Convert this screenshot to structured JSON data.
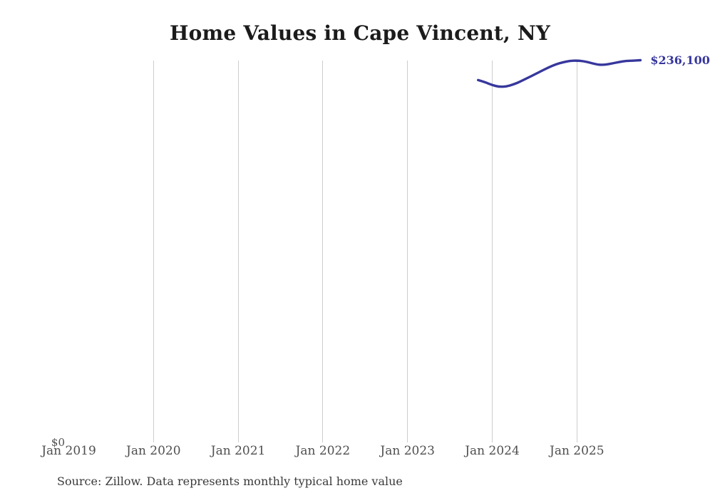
{
  "page": {
    "background_color": "#ffffff",
    "title_color": "#1b1b1b",
    "axis_label_color": "#4f4f4f",
    "source_color": "#3a3a3a"
  },
  "chart_data": {
    "type": "line",
    "title": "Home Values in Cape Vincent, NY",
    "xlabel": "",
    "ylabel": "",
    "x_tick_labels": [
      "Jan 2019",
      "Jan 2020",
      "Jan 2021",
      "Jan 2022",
      "Jan 2023",
      "Jan 2024",
      "Jan 2025"
    ],
    "y_tick_labels": [
      "$0"
    ],
    "ylim": [
      0,
      236100
    ],
    "grid": "vertical-only",
    "legend": "none",
    "line_color": "#37379d",
    "gridline_color": "#cdcdcd",
    "end_label": "$236,100",
    "series": [
      {
        "name": "Monthly typical home value",
        "x": [
          "2023-11",
          "2023-12",
          "2024-01",
          "2024-02",
          "2024-03",
          "2024-04",
          "2024-05",
          "2024-06",
          "2024-07",
          "2024-08",
          "2024-09",
          "2024-10",
          "2024-11",
          "2024-12",
          "2025-01",
          "2025-02",
          "2025-03",
          "2025-04",
          "2025-05",
          "2025-06",
          "2025-07",
          "2025-08",
          "2025-09",
          "2025-10"
        ],
        "values": [
          223800,
          222500,
          220700,
          219600,
          219800,
          221100,
          222900,
          225100,
          227300,
          229500,
          231700,
          233500,
          234800,
          235700,
          235900,
          235500,
          234400,
          233300,
          233300,
          234100,
          235000,
          235700,
          235800,
          236100
        ]
      }
    ]
  },
  "footer": {
    "source_note": "Source: Zillow. Data represents monthly typical home value"
  }
}
